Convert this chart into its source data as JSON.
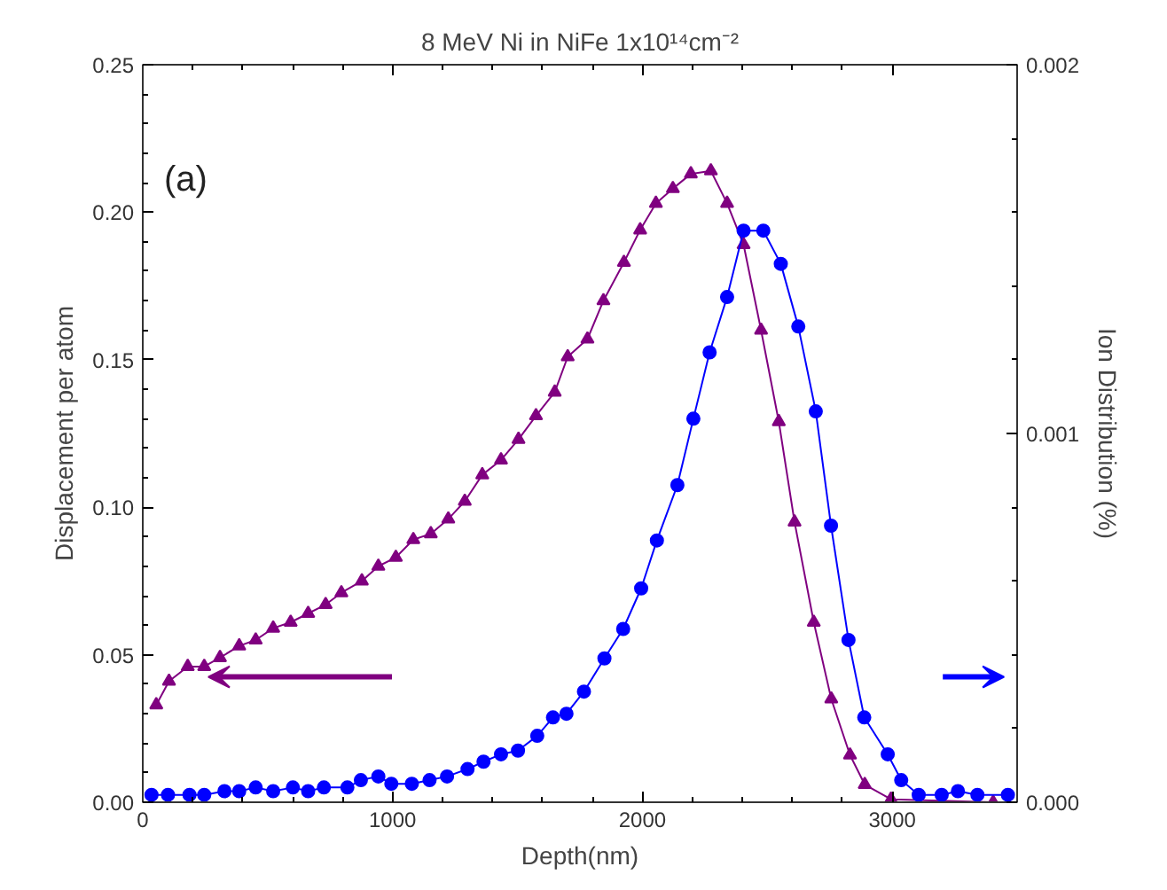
{
  "chart_data": {
    "type": "line",
    "title": "8 MeV Ni in NiFe 1x10¹⁴cm⁻²",
    "xlabel": "Depth(nm)",
    "ylabel": "Displacement per atom",
    "y2label": "Ion Distribution (%)",
    "annotations": [
      "(a)"
    ],
    "xlim": [
      0,
      3500
    ],
    "xticks": [
      0,
      1000,
      2000,
      3000
    ],
    "ylim": [
      0,
      0.25
    ],
    "yticks": [
      {
        "value": 0,
        "label": "0.00"
      },
      {
        "value": 0.05,
        "label": "0.05"
      },
      {
        "value": 0.1,
        "label": "0.10"
      },
      {
        "value": 0.15,
        "label": "0.15"
      },
      {
        "value": 0.2,
        "label": "0.20"
      },
      {
        "value": 0.25,
        "label": "0.25"
      }
    ],
    "y2lim": [
      0,
      0.002
    ],
    "y2ticks": [
      {
        "value": 0,
        "label": "0.000"
      },
      {
        "value": 0.001,
        "label": "0.001"
      },
      {
        "value": 0.002,
        "label": "0.002"
      }
    ],
    "grid": false,
    "line_style": "solid",
    "series": [
      {
        "color": "#800080",
        "marker": "triangle",
        "x": [
          54,
          105,
          180,
          246,
          309,
          386,
          452,
          522,
          592,
          662,
          732,
          795,
          877,
          943,
          1013,
          1083,
          1153,
          1223,
          1289,
          1359,
          1434,
          1504,
          1574,
          1649,
          1701,
          1780,
          1844,
          1926,
          1991,
          2054,
          2122,
          2194,
          2274,
          2339,
          2405,
          2475,
          2546,
          2609,
          2686,
          2756,
          2831,
          2890,
          2995,
          3404
        ],
        "values": [
          0.033,
          0.041,
          0.046,
          0.046,
          0.049,
          0.053,
          0.055,
          0.059,
          0.061,
          0.064,
          0.067,
          0.071,
          0.075,
          0.08,
          0.083,
          0.089,
          0.091,
          0.096,
          0.102,
          0.111,
          0.116,
          0.123,
          0.131,
          0.139,
          0.151,
          0.157,
          0.17,
          0.183,
          0.194,
          0.203,
          0.208,
          0.213,
          0.214,
          0.203,
          0.189,
          0.16,
          0.129,
          0.095,
          0.061,
          0.035,
          0.016,
          0.006,
          0.001,
          0.0
        ]
      },
      {
        "color": "#0000ff",
        "marker": "circle",
        "axis": "y2",
        "x": [
          35,
          101,
          187,
          246,
          327,
          386,
          452,
          522,
          601,
          662,
          725,
          819,
          873,
          943,
          995,
          1077,
          1148,
          1218,
          1300,
          1364,
          1434,
          1502,
          1579,
          1642,
          1696,
          1766,
          1848,
          1923,
          1995,
          2058,
          2140,
          2204,
          2269,
          2339,
          2405,
          2484,
          2554,
          2624,
          2694,
          2755,
          2825,
          2888,
          2982,
          3036,
          3106,
          3198,
          3263,
          3341,
          3463
        ],
        "values": [
          2e-05,
          2e-05,
          2e-05,
          2e-05,
          3e-05,
          3e-05,
          4e-05,
          3e-05,
          4e-05,
          3e-05,
          4e-05,
          4e-05,
          6e-05,
          7e-05,
          5e-05,
          5e-05,
          6e-05,
          7e-05,
          9e-05,
          0.00011,
          0.00013,
          0.00014,
          0.00018,
          0.00023,
          0.00024,
          0.0003,
          0.00039,
          0.00047,
          0.00058,
          0.00071,
          0.00086,
          0.00104,
          0.00122,
          0.00137,
          0.00155,
          0.00155,
          0.00146,
          0.00129,
          0.00106,
          0.00075,
          0.00044,
          0.00023,
          0.00013,
          6e-05,
          2e-05,
          2e-05,
          3e-05,
          2e-05,
          2e-05
        ]
      }
    ]
  }
}
